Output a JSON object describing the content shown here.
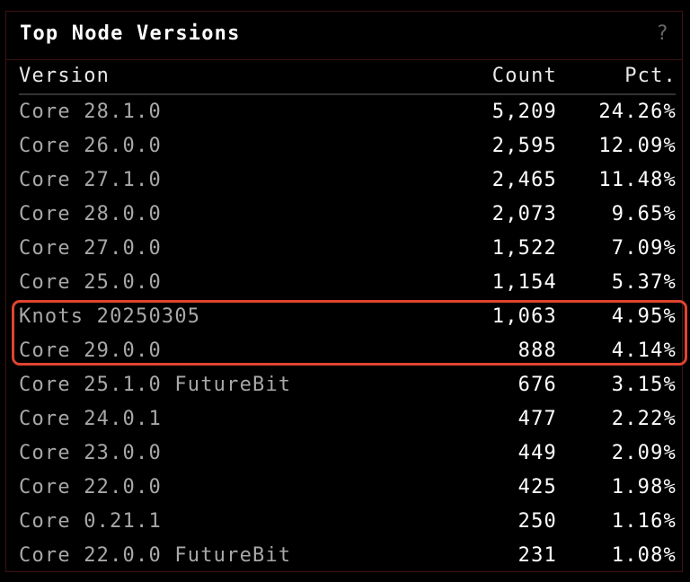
{
  "panel": {
    "title": "Top Node Versions",
    "help": "?"
  },
  "columns": {
    "version": "Version",
    "count": "Count",
    "pct": "Pct."
  },
  "rows": [
    {
      "version": "Core 28.1.0",
      "count": "5,209",
      "pct": "24.26%"
    },
    {
      "version": "Core 26.0.0",
      "count": "2,595",
      "pct": "12.09%"
    },
    {
      "version": "Core 27.1.0",
      "count": "2,465",
      "pct": "11.48%"
    },
    {
      "version": "Core 28.0.0",
      "count": "2,073",
      "pct": "9.65%"
    },
    {
      "version": "Core 27.0.0",
      "count": "1,522",
      "pct": "7.09%"
    },
    {
      "version": "Core 25.0.0",
      "count": "1,154",
      "pct": "5.37%"
    },
    {
      "version": "Knots 20250305",
      "count": "1,063",
      "pct": "4.95%"
    },
    {
      "version": "Core 29.0.0",
      "count": "888",
      "pct": "4.14%"
    },
    {
      "version": "Core 25.1.0 FutureBit",
      "count": "676",
      "pct": "3.15%"
    },
    {
      "version": "Core 24.0.1",
      "count": "477",
      "pct": "2.22%"
    },
    {
      "version": "Core 23.0.0",
      "count": "449",
      "pct": "2.09%"
    },
    {
      "version": "Core 22.0.0",
      "count": "425",
      "pct": "1.98%"
    },
    {
      "version": "Core 0.21.1",
      "count": "250",
      "pct": "1.16%"
    },
    {
      "version": "Core 22.0.0 FutureBit",
      "count": "231",
      "pct": "1.08%"
    }
  ],
  "highlight": {
    "color": "#e0442f",
    "rows": [
      "Knots 20250305",
      "Core 29.0.0"
    ]
  }
}
